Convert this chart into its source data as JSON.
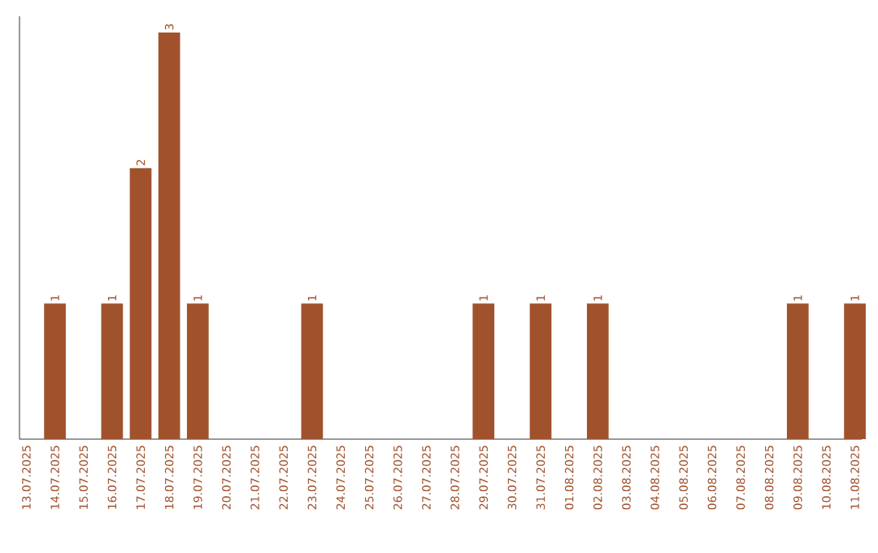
{
  "chart_data": {
    "type": "bar",
    "color": "#a0522d",
    "categories": [
      "13.07.2025",
      "14.07.2025",
      "15.07.2025",
      "16.07.2025",
      "17.07.2025",
      "18.07.2025",
      "19.07.2025",
      "20.07.2025",
      "21.07.2025",
      "22.07.2025",
      "23.07.2025",
      "24.07.2025",
      "25.07.2025",
      "26.07.2025",
      "27.07.2025",
      "28.07.2025",
      "29.07.2025",
      "30.07.2025",
      "31.07.2025",
      "01.08.2025",
      "02.08.2025",
      "03.08.2025",
      "04.08.2025",
      "05.08.2025",
      "06.08.2025",
      "07.08.2025",
      "08.08.2025",
      "09.08.2025",
      "10.08.2025",
      "11.08.2025"
    ],
    "values": [
      0,
      1,
      0,
      1,
      2,
      3,
      1,
      0,
      0,
      0,
      1,
      0,
      0,
      0,
      0,
      0,
      1,
      0,
      1,
      0,
      1,
      0,
      0,
      0,
      0,
      0,
      0,
      1,
      0,
      1
    ],
    "value_labels": [
      null,
      "1",
      null,
      "1",
      "2",
      "3",
      "1",
      null,
      null,
      null,
      "1",
      null,
      null,
      null,
      null,
      null,
      "1",
      null,
      "1",
      null,
      "1",
      null,
      null,
      null,
      null,
      null,
      null,
      "1",
      null,
      "1"
    ],
    "ylim": [
      0,
      3.12
    ],
    "tick_labels": "x",
    "grid": false
  }
}
